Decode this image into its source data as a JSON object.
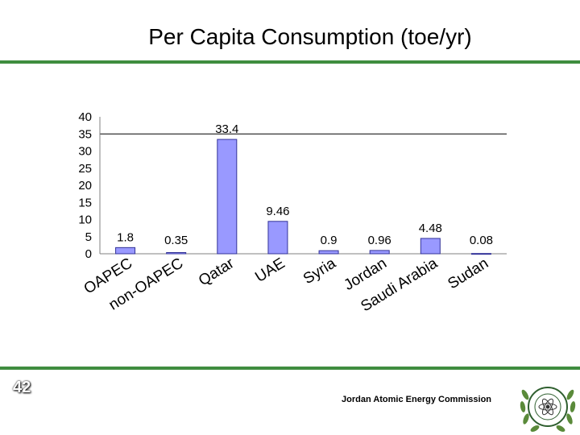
{
  "slide": {
    "title": "Per Capita Consumption (toe/yr)",
    "page_number": "42",
    "footer_org": "Jordan Atomic Energy Commission"
  },
  "colors": {
    "rule": "#3f8d3f",
    "bar_fill": "#9999ff",
    "bar_stroke": "#333399",
    "plot_bg": "#ffffff",
    "grid": "#000000"
  },
  "logo": {
    "type": "seal",
    "emblem": "atom-icon",
    "text": "Jordan Atomic Energy Commission"
  },
  "chart_data": {
    "type": "bar",
    "categories": [
      "OAPEC",
      "non-OAPEC",
      "Qatar",
      "UAE",
      "Syria",
      "Jordan",
      "Saudi Arabia",
      "Sudan"
    ],
    "values": [
      1.8,
      0.35,
      33.4,
      9.46,
      0.9,
      0.96,
      4.48,
      0.08
    ],
    "data_labels": [
      "1.8",
      "0.35",
      "33.4",
      "9.46",
      "0.9",
      "0.96",
      "4.48",
      "0.08"
    ],
    "y_ticks": [
      "0",
      "5",
      "10",
      "15",
      "20",
      "25",
      "30",
      "35",
      "40"
    ],
    "ylim": [
      0,
      40
    ],
    "reference_line": 35,
    "legend": "none",
    "grid": false
  }
}
